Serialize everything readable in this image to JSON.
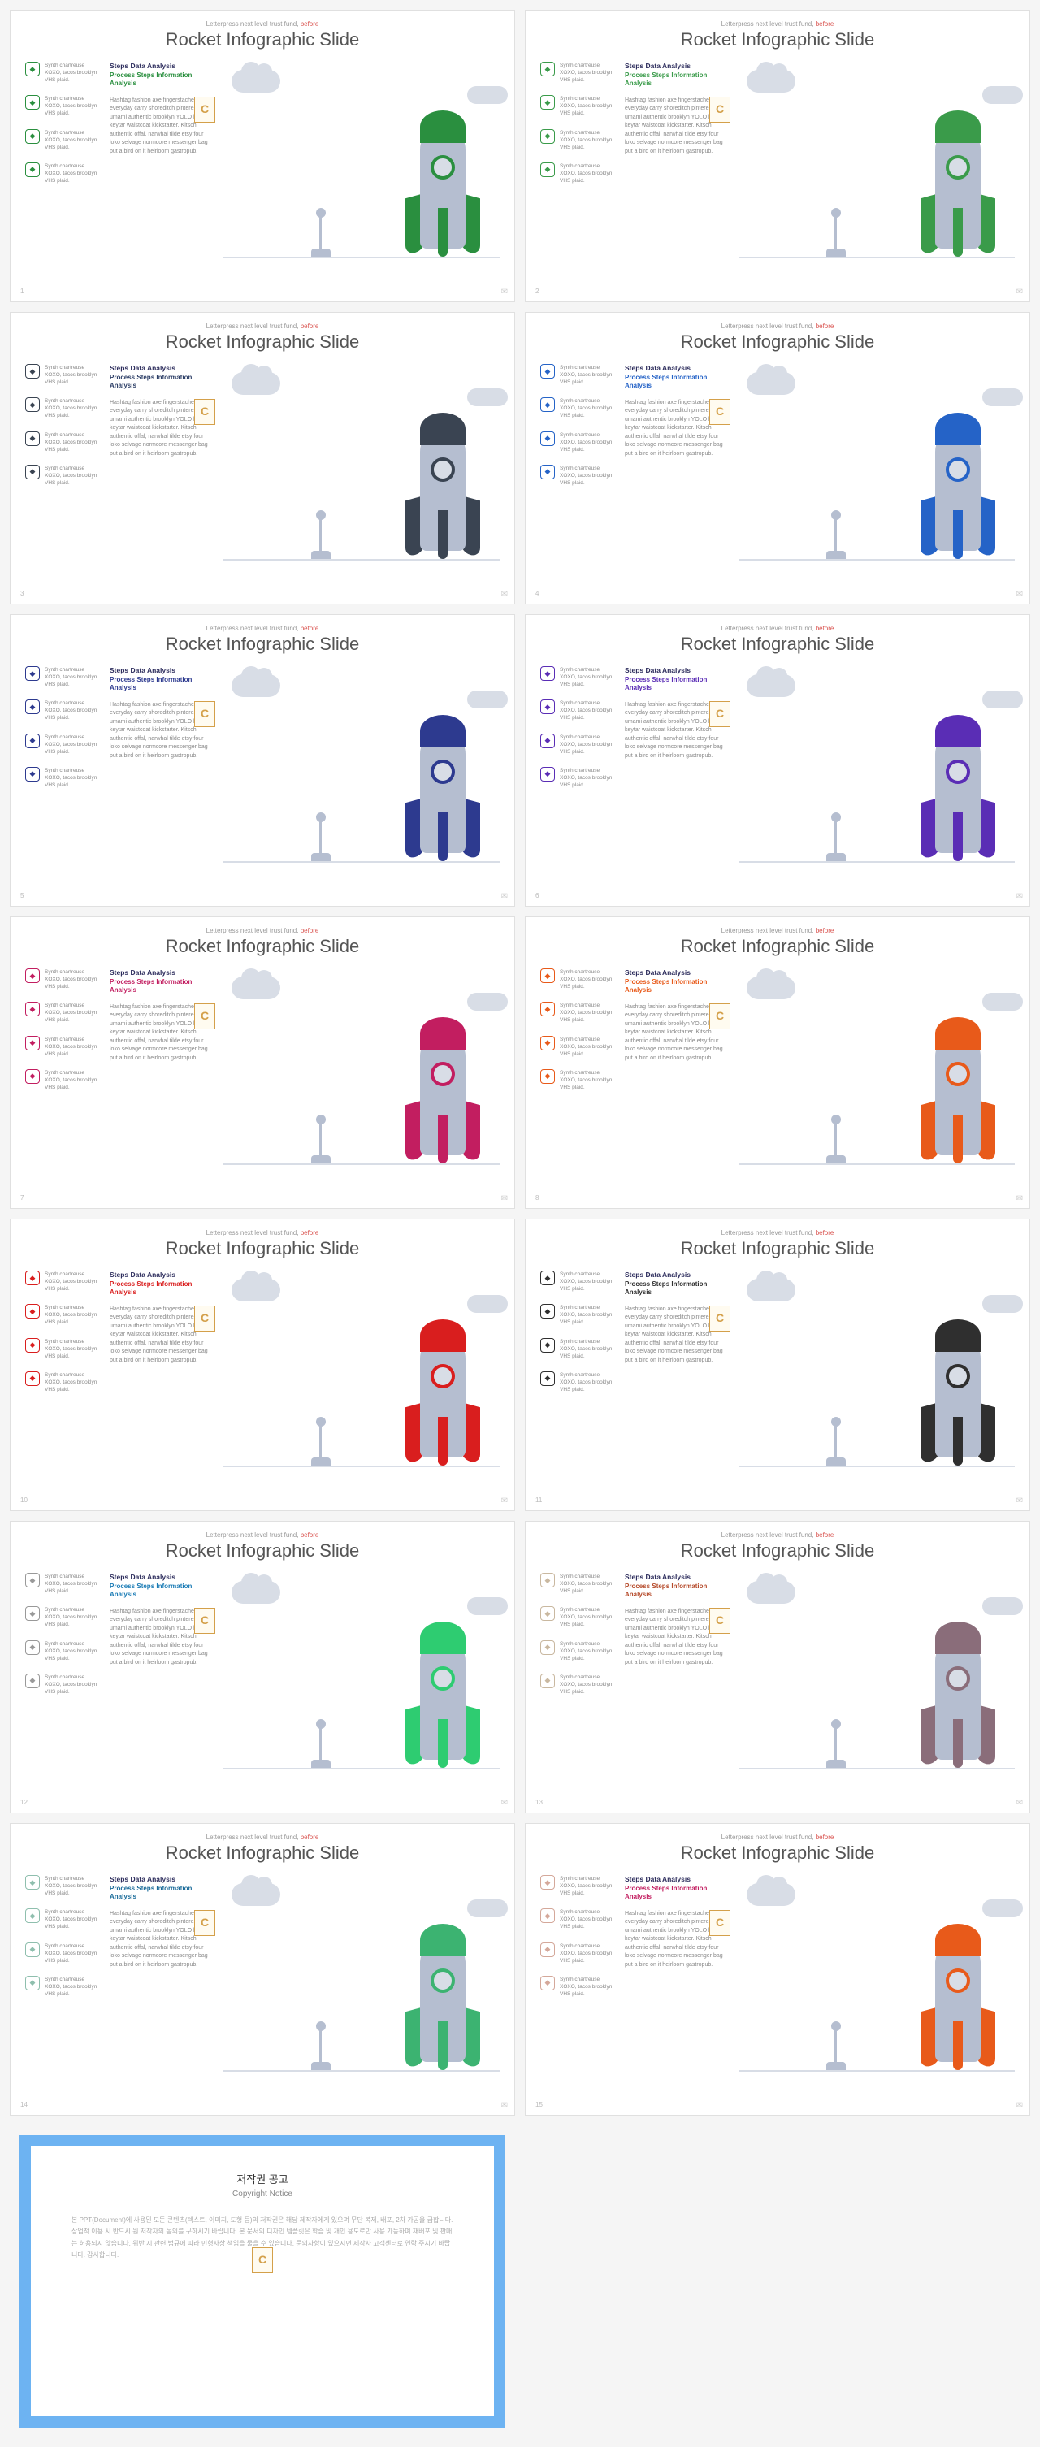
{
  "slides": [
    {
      "num": "1",
      "accent": "#2a8f3f",
      "h2c": "#2a8f3f"
    },
    {
      "num": "2",
      "accent": "#3a9b4a",
      "h2c": "#3a9b4a"
    },
    {
      "num": "3",
      "accent": "#3a4452",
      "h2c": "#2c3e66"
    },
    {
      "num": "4",
      "accent": "#2563c7",
      "h2c": "#2563c7"
    },
    {
      "num": "5",
      "accent": "#2d3a8f",
      "h2c": "#2d3a8f"
    },
    {
      "num": "6",
      "accent": "#5a2db5",
      "h2c": "#5a2db5"
    },
    {
      "num": "7",
      "accent": "#c21e60",
      "h2c": "#c21e60"
    },
    {
      "num": "8",
      "accent": "#e85a1a",
      "h2c": "#e85a1a"
    },
    {
      "num": "10",
      "accent": "#d91e1e",
      "h2c": "#d91e1e"
    },
    {
      "num": "11",
      "accent": "#2f2f2f",
      "h2c": "#2f2f2f"
    },
    {
      "num": "12",
      "accent": "#2ecc71",
      "h2c": "#1a7bb5",
      "iconc": "#999"
    },
    {
      "num": "13",
      "accent": "#8a6d7a",
      "h2c": "#b54a2a",
      "iconc": "#c9b8a0"
    },
    {
      "num": "14",
      "accent": "#3cb371",
      "h2c": "#1a6b99",
      "iconc": "#8fbfae"
    },
    {
      "num": "15",
      "accent": "#e85a1a",
      "h2c": "#c21e60",
      "iconc": "#d4a89a"
    }
  ],
  "common": {
    "sub_pre": "Letterpress next level trust fund, ",
    "sub_after": "before",
    "title": "Rocket Infographic Slide",
    "item_text": "Synth chartreuse XOXO, tacos brooklyn VHS plaid.",
    "h1": "Steps Data Analysis",
    "h2": "Process Steps Information Analysis",
    "body": "Hashtag fashion axe fingerstache, everyday carry shoreditch pinterest umami authentic brooklyn YOLO heirloom keytar waistcoat kickstarter. Kitsch authentic offal, narwhal tilde etsy four loko selvage normcore messenger bag put a bird on it heirloom gastropub.",
    "badge": "C"
  },
  "notice": {
    "title": "저작권 공고",
    "sub": "Copyright Notice",
    "body": "본 PPT(Document)에 사용된 모든 콘텐츠(텍스트, 이미지, 도형 등)의 저작권은 해당 제작자에게 있으며 무단 복제, 배포, 2차 가공을 금합니다. 상업적 이용 시 반드시 원 저작자의 동의를 구하시기 바랍니다.\n\n본 문서의 디자인 템플릿은 학습 및 개인 용도로만 사용 가능하며 재배포 및 판매는 허용되지 않습니다. 위반 시 관련 법규에 따라 민형사상 책임을 물을 수 있습니다.\n\n문의사항이 있으시면 제작사 고객센터로 연락 주시기 바랍니다. 감사합니다."
  }
}
